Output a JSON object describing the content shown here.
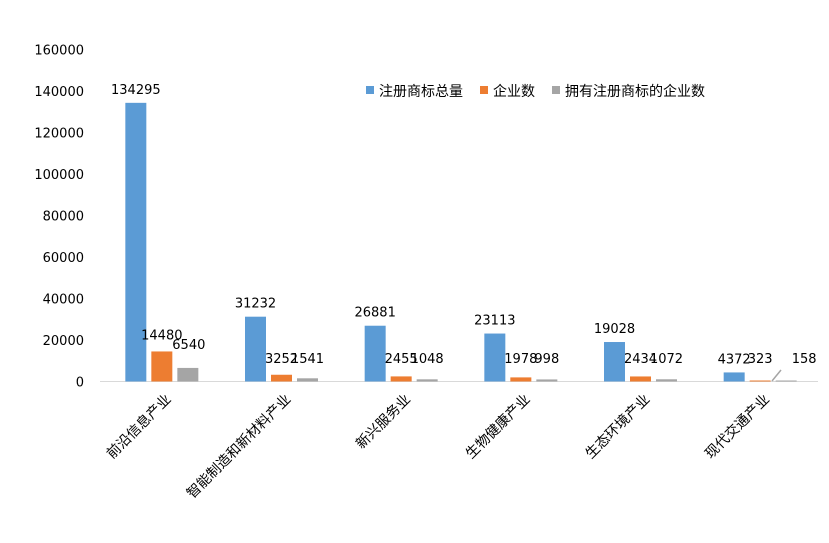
{
  "chart_data": {
    "type": "bar",
    "title": "",
    "xlabel": "",
    "ylabel": "",
    "ylim": [
      0,
      160000
    ],
    "yticks": [
      0,
      20000,
      40000,
      60000,
      80000,
      100000,
      120000,
      140000,
      160000
    ],
    "grid": false,
    "legend_position": "top-right",
    "categories": [
      "前沿信息产业",
      "智能制造和新材料产业",
      "新兴服务业",
      "生物健康产业",
      "生态环境产业",
      "现代交通产业"
    ],
    "series": [
      {
        "name": "注册商标总量",
        "color": "#5B9BD5",
        "values": [
          134295,
          31232,
          26881,
          23113,
          19028,
          4372
        ]
      },
      {
        "name": "企业数",
        "color": "#ED7D31",
        "values": [
          14480,
          3252,
          2455,
          1978,
          2434,
          323
        ]
      },
      {
        "name": "拥有注册商标的企业数",
        "color": "#A5A5A5",
        "values": [
          6540,
          1541,
          1048,
          998,
          1072,
          158
        ]
      }
    ]
  }
}
